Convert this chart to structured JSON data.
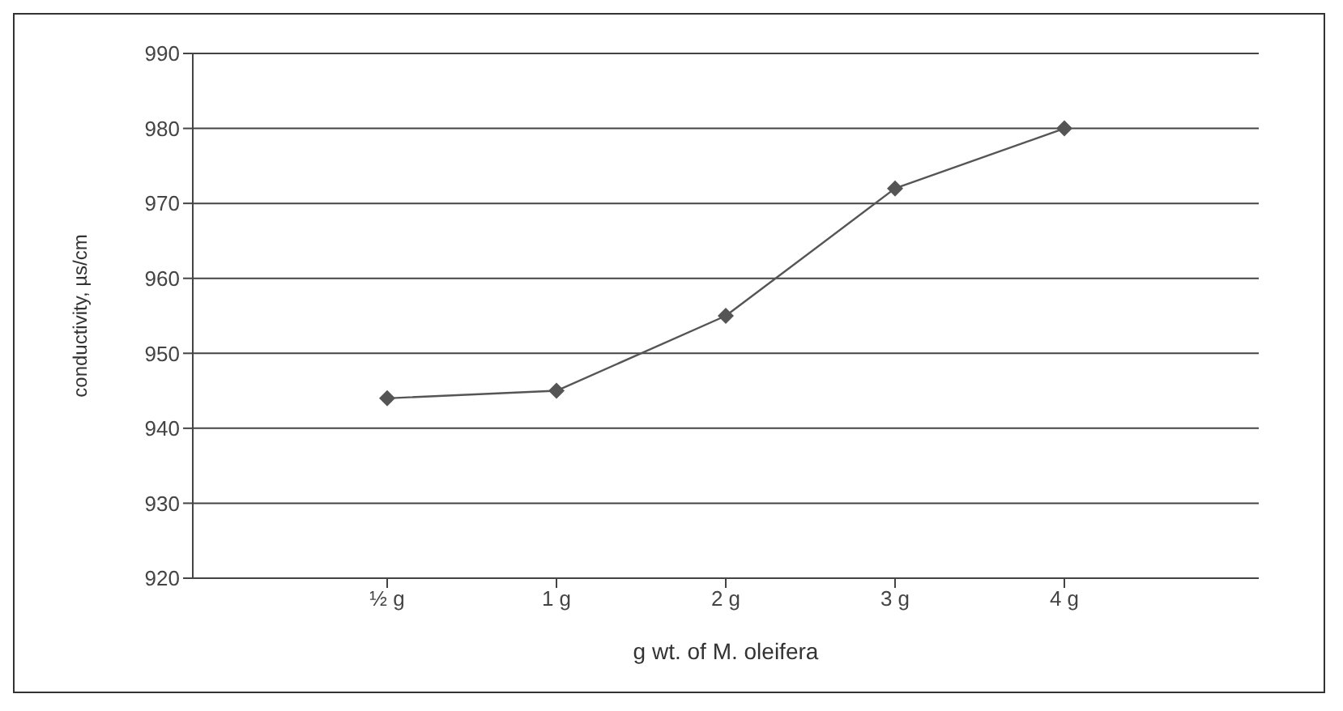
{
  "chart_data": {
    "type": "line",
    "xlabel": "g wt. of M. oleifera",
    "ylabel": "conductivity, µs/cm",
    "categories": [
      "½ g",
      "1 g",
      "2 g",
      "3 g",
      "4 g"
    ],
    "series": [
      {
        "color": "#555555",
        "values": [
          944,
          945,
          955,
          972,
          980
        ]
      }
    ],
    "ylim": [
      920,
      990
    ],
    "yticks": [
      920,
      930,
      940,
      950,
      960,
      970,
      980,
      990
    ],
    "grid": "y",
    "marker": "diamond",
    "line_style": "solid"
  }
}
